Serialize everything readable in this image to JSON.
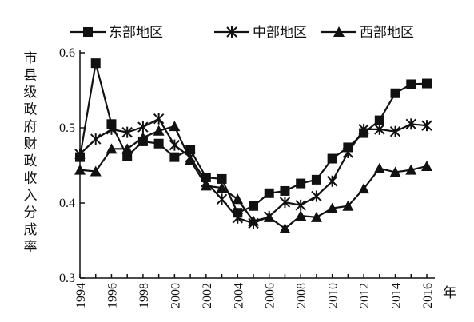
{
  "chart_data": {
    "type": "line",
    "ylabel": "市县级政府财政收入分成率",
    "xlabel": "年",
    "x": [
      1994,
      1995,
      1996,
      1997,
      1998,
      1999,
      2000,
      2001,
      2002,
      2003,
      2004,
      2005,
      2006,
      2007,
      2008,
      2009,
      2010,
      2011,
      2012,
      2013,
      2014,
      2015,
      2016
    ],
    "xticks": [
      "1994",
      "1996",
      "1998",
      "2000",
      "2002",
      "2004",
      "2006",
      "2008",
      "2010",
      "2012",
      "2014",
      "2016"
    ],
    "yticks": [
      "0.3",
      "0.4",
      "0.5",
      "0.6"
    ],
    "ylim": [
      0.3,
      0.6
    ],
    "xlim": [
      1994,
      2016
    ],
    "legend_position": "top",
    "grid": false,
    "series": [
      {
        "name": "东部地区",
        "marker": "square",
        "values": [
          0.461,
          0.586,
          0.505,
          0.462,
          0.482,
          0.479,
          0.461,
          0.471,
          0.434,
          0.432,
          0.387,
          0.396,
          0.413,
          0.416,
          0.426,
          0.431,
          0.459,
          0.474,
          0.493,
          0.51,
          0.546,
          0.558,
          0.559
        ]
      },
      {
        "name": "中部地区",
        "marker": "asterisk",
        "values": [
          0.465,
          0.485,
          0.498,
          0.494,
          0.501,
          0.512,
          0.477,
          0.461,
          0.428,
          0.405,
          0.38,
          0.373,
          0.382,
          0.401,
          0.397,
          0.409,
          0.429,
          0.467,
          0.498,
          0.498,
          0.495,
          0.505,
          0.503
        ]
      },
      {
        "name": "西部地区",
        "marker": "triangle",
        "values": [
          0.444,
          0.442,
          0.472,
          0.472,
          0.487,
          0.496,
          0.502,
          0.457,
          0.423,
          0.42,
          0.405,
          0.376,
          0.381,
          0.366,
          0.383,
          0.381,
          0.393,
          0.396,
          0.419,
          0.446,
          0.441,
          0.444,
          0.449
        ]
      }
    ]
  }
}
